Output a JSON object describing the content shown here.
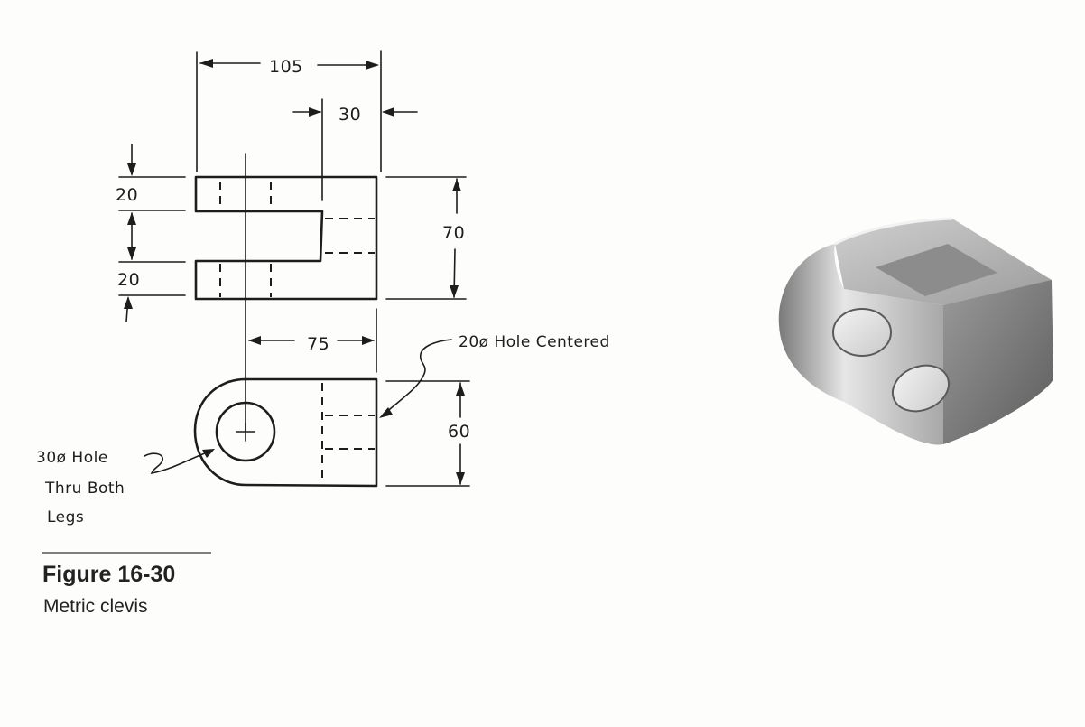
{
  "drawing": {
    "dimensions": {
      "overall_width": "105",
      "slot_offset": "30",
      "top_leg_thickness": "20",
      "bottom_leg_thickness": "20",
      "height": "70",
      "hole_to_back": "75",
      "depth": "60"
    },
    "notes": {
      "small_hole": "20ø Hole Centered",
      "large_hole_line1": "30ø Hole",
      "large_hole_line2": "Thru Both",
      "large_hole_line3": "Legs"
    }
  },
  "caption": {
    "figure_number": "Figure 16-30",
    "figure_title": "Metric clevis"
  },
  "colors": {
    "ink": "#1d1d1d",
    "rule": "#7f7f7f",
    "part_light": "#e4e4e4",
    "part_mid": "#b4b4b4",
    "part_dark": "#6e6e6e"
  }
}
